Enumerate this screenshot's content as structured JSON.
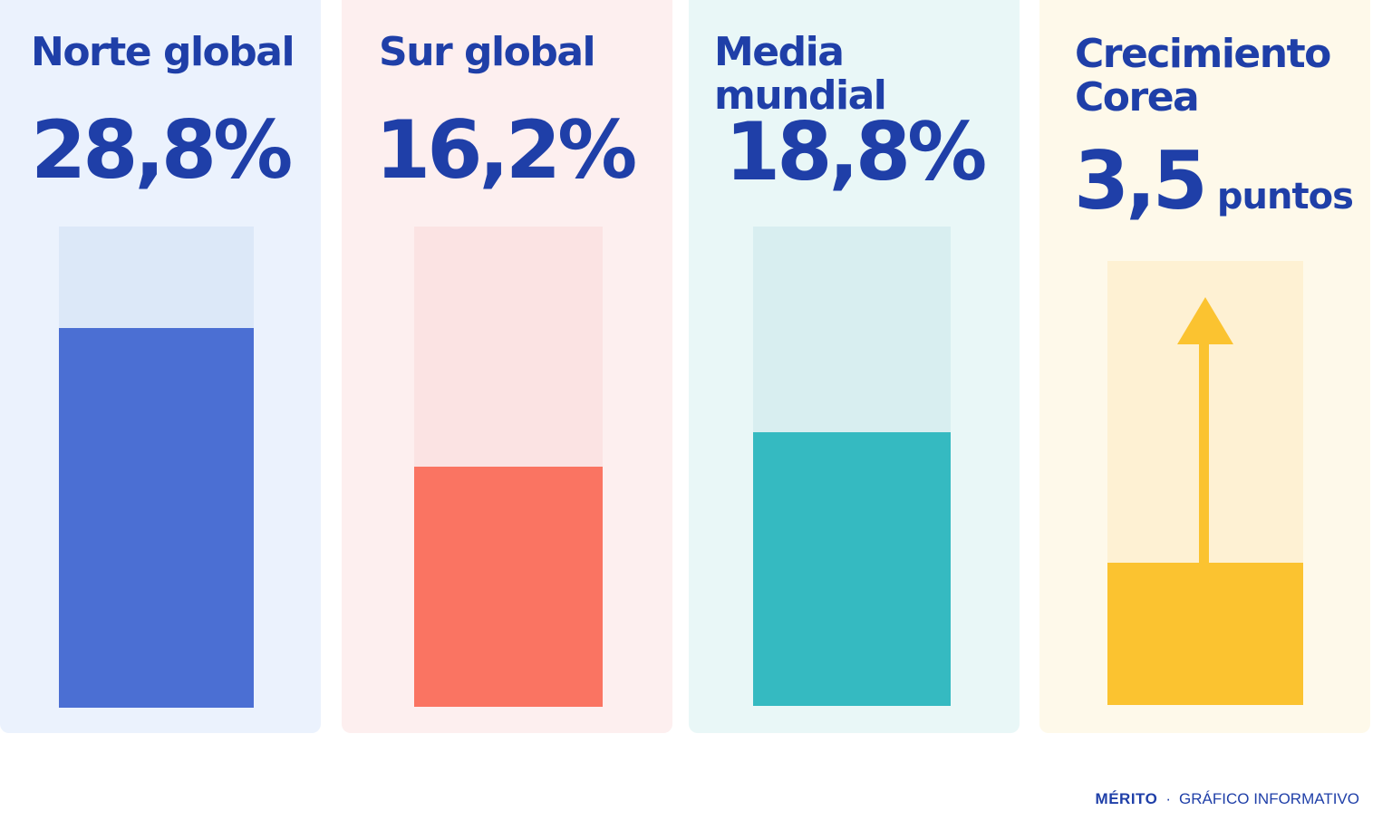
{
  "chart_data": {
    "type": "bar",
    "panels": [
      {
        "key": "norte",
        "title": "Norte global",
        "value_label": "28,8%",
        "value": 28.8,
        "fill": 0.79,
        "bg": "#ebf2fd",
        "track": "#dce8f8",
        "color": "#4b6fd3"
      },
      {
        "key": "sur",
        "title": "Sur global",
        "value_label": "16,2%",
        "value": 16.2,
        "fill": 0.5,
        "bg": "#fdefef",
        "track": "#fbe3e3",
        "color": "#fa7462"
      },
      {
        "key": "media",
        "title": "Media mundial",
        "value_label": "18,8%",
        "value": 18.8,
        "fill": 0.57,
        "bg": "#e9f7f7",
        "track": "#d8eef0",
        "color": "#35bac1"
      },
      {
        "key": "corea",
        "title": "Crecimiento Corea",
        "value_label": "3,5",
        "unit": "puntos",
        "value": 3.5,
        "fill": 0.32,
        "bg": "#fef9ea",
        "track": "#fef1d3",
        "color": "#fbc330",
        "arrow": true
      }
    ]
  },
  "footer": {
    "brand": "MÉRITO",
    "separator": "·",
    "subtitle": "GRÁFICO INFORMATIVO"
  }
}
